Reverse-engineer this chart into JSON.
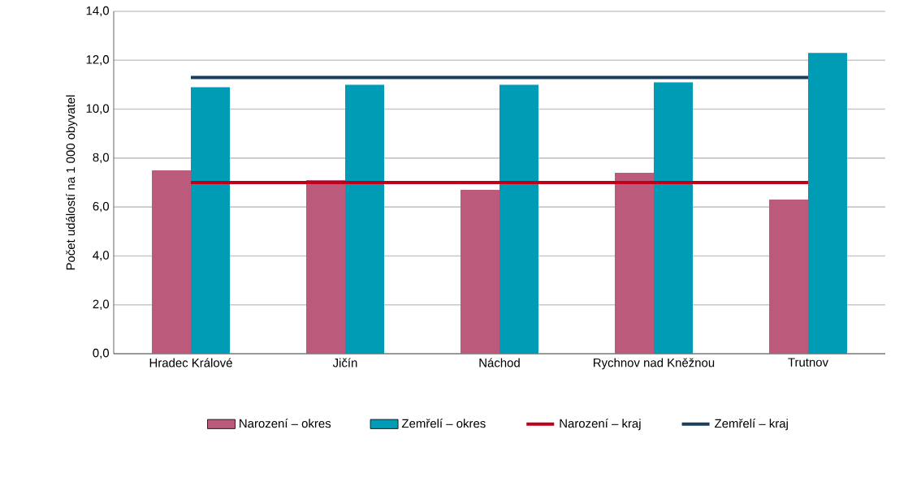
{
  "chart_data": {
    "type": "bar",
    "ylabel": "Počet událostí na 1 000 obyvatel",
    "categories": [
      "Hradec Králové",
      "Jičín",
      "Náchod",
      "Rychnov nad Kněžnou",
      "Trutnov"
    ],
    "series": [
      {
        "name": "Narození – okres",
        "color": "#bc5a7c",
        "values": [
          7.5,
          7.1,
          6.7,
          7.4,
          6.3
        ]
      },
      {
        "name": "Zemřelí – okres",
        "color": "#009bb4",
        "values": [
          10.9,
          11.0,
          11.0,
          11.1,
          12.3
        ]
      },
      {
        "name": "Narození – kraj",
        "type": "line",
        "color": "#c0001a",
        "values": [
          7.0,
          7.0,
          7.0,
          7.0,
          7.0
        ]
      },
      {
        "name": "Zemřelí – kraj",
        "type": "line",
        "color": "#1a3f5c",
        "values": [
          11.3,
          11.3,
          11.3,
          11.3,
          11.3
        ]
      }
    ],
    "ylim": [
      0,
      14
    ],
    "yticks": [
      {
        "value": 0,
        "label": "0,0"
      },
      {
        "value": 2,
        "label": "2,0"
      },
      {
        "value": 4,
        "label": "4,0"
      },
      {
        "value": 6,
        "label": "6,0"
      },
      {
        "value": 8,
        "label": "8,0"
      },
      {
        "value": 10,
        "label": "10,0"
      },
      {
        "value": 12,
        "label": "12,0"
      },
      {
        "value": 14,
        "label": "14,0"
      }
    ],
    "grid": "y",
    "legend": "bottom"
  }
}
